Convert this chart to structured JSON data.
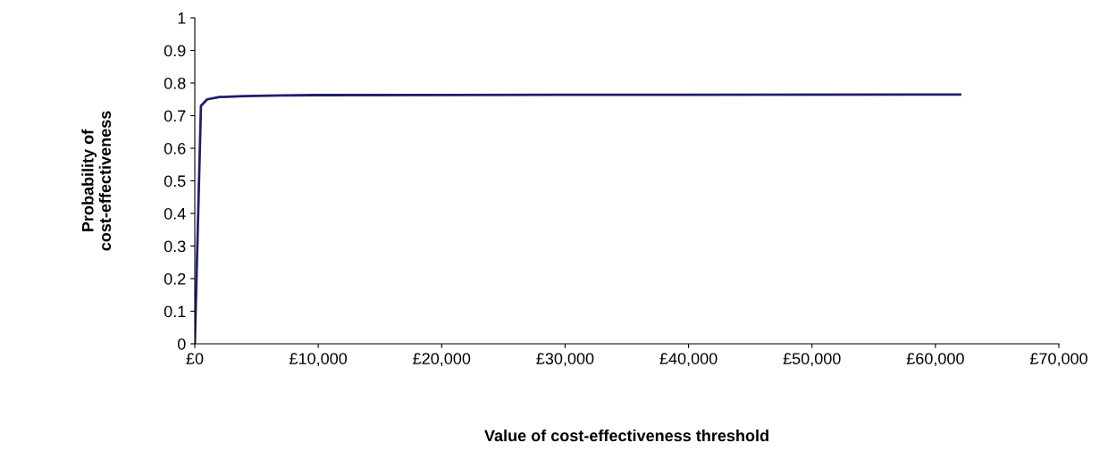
{
  "chart_data": {
    "type": "line",
    "xlabel": "Value of cost-effectiveness threshold",
    "ylabel": "Probability of\ncost-effectiveness",
    "x": [
      0,
      500,
      1000,
      2000,
      4000,
      7000,
      10000,
      30000,
      62000
    ],
    "series": [
      {
        "color": "#1f1f6b",
        "values": [
          0,
          0.73,
          0.75,
          0.757,
          0.76,
          0.762,
          0.763,
          0.764,
          0.765
        ]
      }
    ],
    "xlim": [
      0,
      70000
    ],
    "xticks": [
      {
        "value": 0,
        "label": "£0"
      },
      {
        "value": 10000,
        "label": "£10,000"
      },
      {
        "value": 20000,
        "label": "£20,000"
      },
      {
        "value": 30000,
        "label": "£30,000"
      },
      {
        "value": 40000,
        "label": "£40,000"
      },
      {
        "value": 50000,
        "label": "£50,000"
      },
      {
        "value": 60000,
        "label": "£60,000"
      },
      {
        "value": 70000,
        "label": "£70,000"
      }
    ],
    "ylim": [
      0,
      1
    ],
    "yticks": [
      0,
      0.1,
      0.2,
      0.3,
      0.4,
      0.5,
      0.6,
      0.7,
      0.8,
      0.9,
      1
    ],
    "grid": false,
    "legend": false,
    "marker": "none",
    "line_style": "solid"
  }
}
